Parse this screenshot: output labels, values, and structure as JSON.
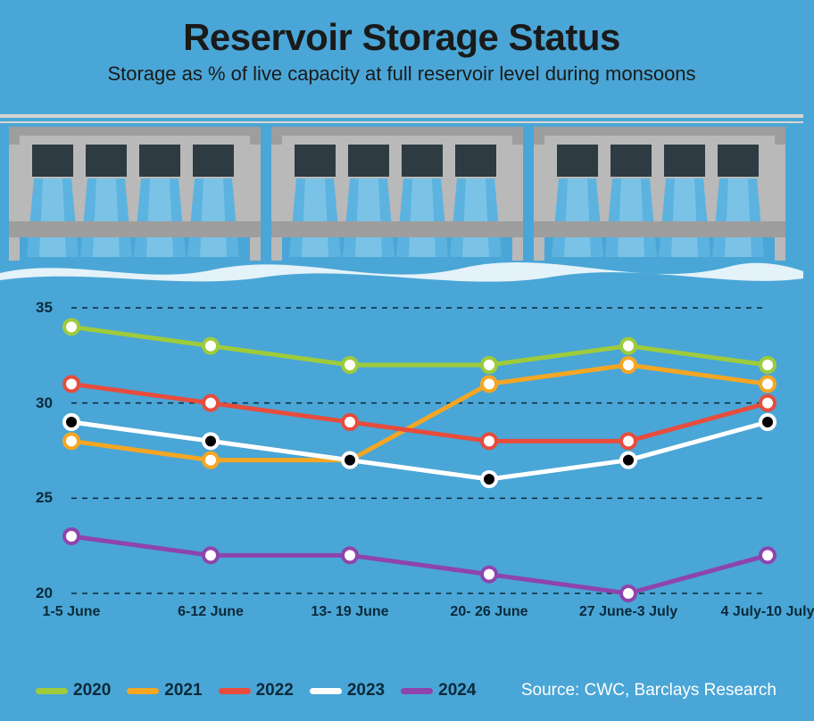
{
  "title": "Reservoir Storage Status",
  "subtitle": "Storage as % of live capacity at full reservoir level during monsoons",
  "source": "Source: CWC, Barclays Research",
  "background_color": "#4aa6d6",
  "dam": {
    "structure_color": "#b9b9b9",
    "shadow_color": "#9e9e9e",
    "gate_color": "#2f3b42",
    "water_color": "#5cb3e0",
    "water_highlight": "#8fcdea",
    "top_rail": "#d5d5d5"
  },
  "chart": {
    "type": "line",
    "ylim": [
      20,
      35
    ],
    "yticks": [
      20,
      25,
      30,
      35
    ],
    "categories": [
      "1-5 June",
      "6-12 June",
      "13- 19 June",
      "20- 26 June",
      "27 June-3 July",
      "4 July-10 July"
    ],
    "grid_color": "#0a2a3a",
    "grid_dash": "6,6",
    "axis_font_color": "#0a2a3a",
    "marker_fill": "#ffffff",
    "marker_radius": 8,
    "marker_stroke_width": 4,
    "line_width": 5,
    "series": [
      {
        "name": "2020",
        "color": "#9ecb3b",
        "values": [
          34,
          33,
          32,
          32,
          33,
          32
        ]
      },
      {
        "name": "2021",
        "color": "#f5a623",
        "values": [
          28,
          27,
          27,
          31,
          32,
          31
        ]
      },
      {
        "name": "2022",
        "color": "#e74c3c",
        "values": [
          31,
          30,
          29,
          28,
          28,
          30
        ]
      },
      {
        "name": "2023",
        "color": "#ffffff",
        "marker_fill": "#000000",
        "values": [
          29,
          28,
          27,
          26,
          27,
          29
        ]
      },
      {
        "name": "2024",
        "color": "#8e44ad",
        "values": [
          23,
          22,
          22,
          21,
          20,
          22
        ]
      }
    ]
  }
}
